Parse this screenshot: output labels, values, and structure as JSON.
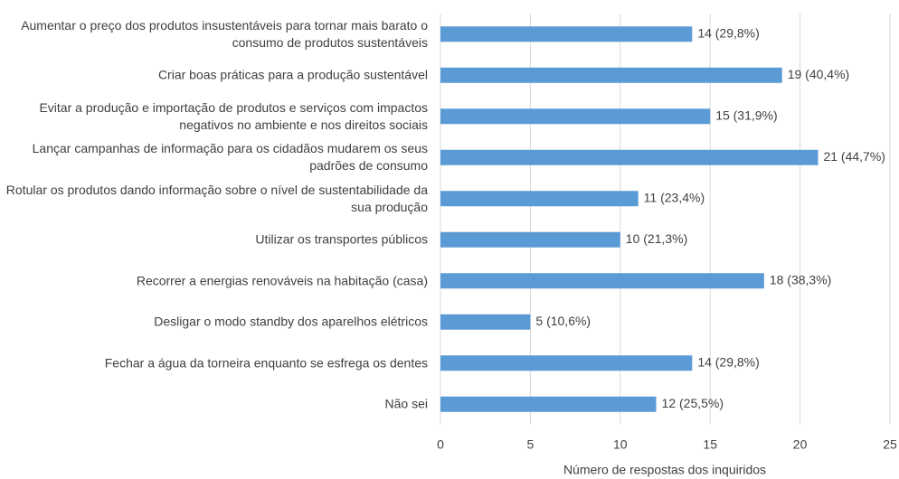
{
  "chart_data": {
    "type": "barh",
    "categories": [
      "Aumentar o preço dos produtos insustentáveis para tornar mais barato o consumo de produtos sustentáveis",
      "Criar boas práticas para a produção sustentável",
      "Evitar a produção e importação de produtos e serviços com impactos negativos no ambiente e nos direitos sociais",
      "Lançar campanhas de informação para os cidadãos mudarem os seus padrões de consumo",
      "Rotular os produtos dando informação sobre o nível de sustentabilidade da sua produção",
      "Utilizar os transportes públicos",
      "Recorrer a energias renováveis na habitação (casa)",
      "Desligar o modo standby dos aparelhos elétricos",
      "Fechar a água da torneira enquanto se esfrega os dentes",
      "Não sei"
    ],
    "values": [
      14,
      19,
      15,
      21,
      11,
      10,
      18,
      5,
      14,
      12
    ],
    "value_labels": [
      "14 (29,8%)",
      "19 (40,4%)",
      "15 (31,9%)",
      "21 (44,7%)",
      "11 (23,4%)",
      "10 (21,3%)",
      "18 (38,3%)",
      "5 (10,6%)",
      "14 (29,8%)",
      "12 (25,5%)"
    ],
    "color": "#5b9bd5",
    "xlim": [
      0,
      25
    ],
    "xticks": [
      0,
      5,
      10,
      15,
      20,
      25
    ],
    "grid": true,
    "xlabel": "Número de respostas dos inquiridos"
  }
}
